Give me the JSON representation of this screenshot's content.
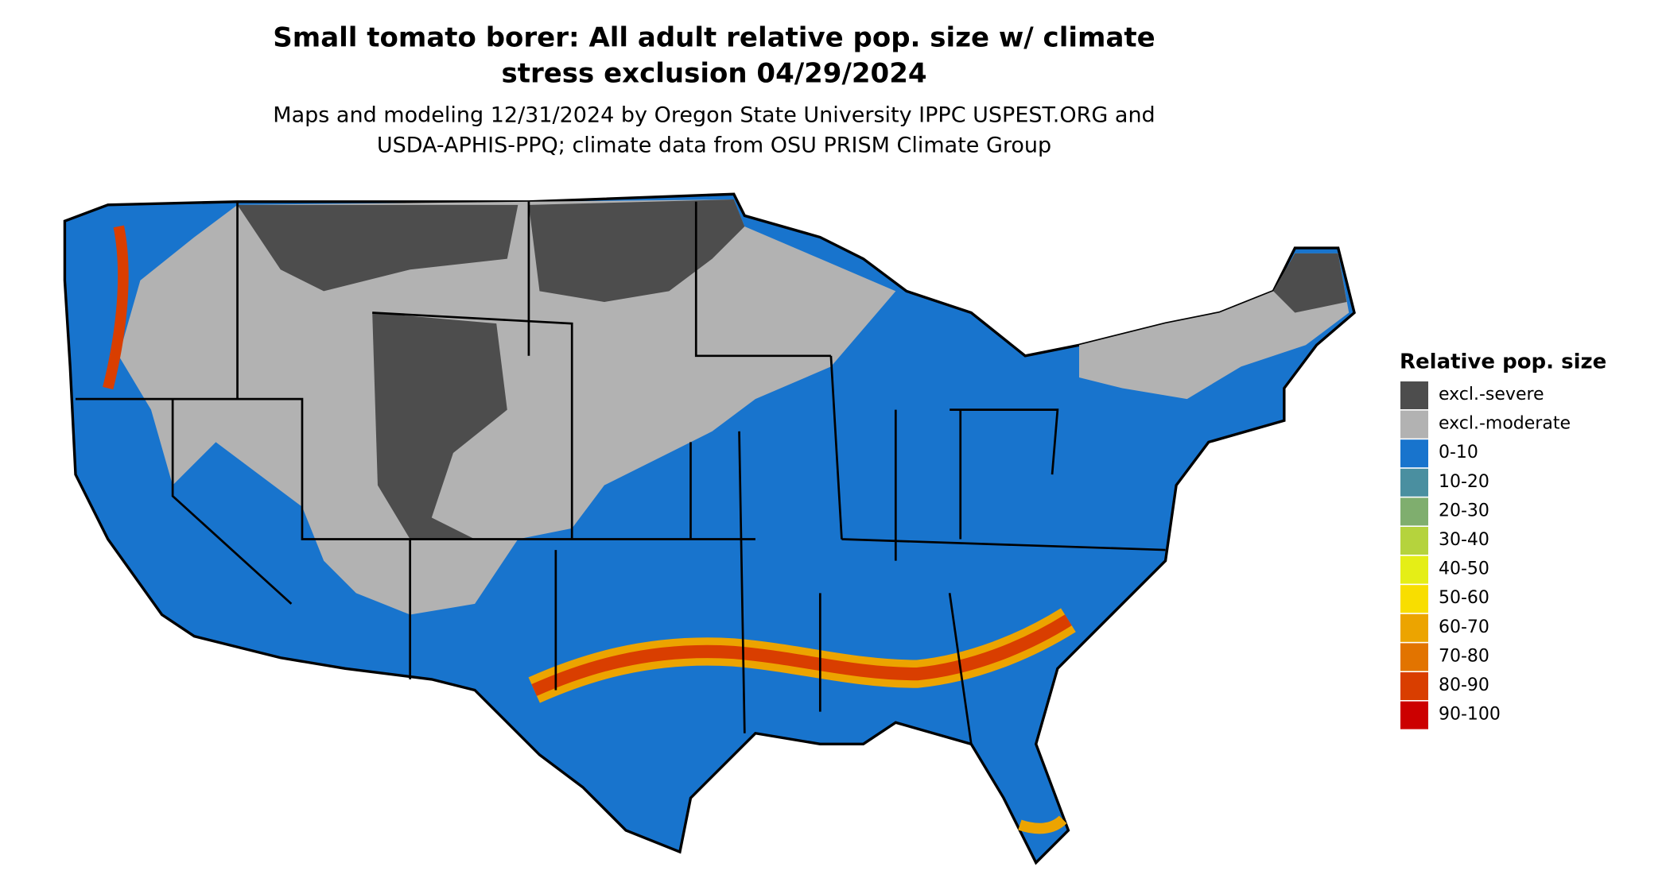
{
  "title": "Small tomato borer: All adult relative pop. size w/ climate stress exclusion 04/29/2024",
  "subtitle_lines": [
    "Maps and modeling 12/31/2024 by Oregon State University IPPC USPEST.ORG and",
    "USDA-APHIS-PPQ; climate data from OSU PRISM Climate Group"
  ],
  "legend": {
    "title": "Relative pop. size",
    "items": [
      {
        "label": "excl.-severe",
        "color": "#4d4d4d"
      },
      {
        "label": "excl.-moderate",
        "color": "#b2b2b2"
      },
      {
        "label": "0-10",
        "color": "#1874cd"
      },
      {
        "label": "10-20",
        "color": "#4a8fa0"
      },
      {
        "label": "20-30",
        "color": "#7fae6e"
      },
      {
        "label": "30-40",
        "color": "#b5d33d"
      },
      {
        "label": "40-50",
        "color": "#e5ee16"
      },
      {
        "label": "50-60",
        "color": "#f8de00"
      },
      {
        "label": "60-70",
        "color": "#eca400"
      },
      {
        "label": "70-80",
        "color": "#e27400"
      },
      {
        "label": "80-90",
        "color": "#d93e00"
      },
      {
        "label": "90-100",
        "color": "#cc0000"
      }
    ]
  }
}
